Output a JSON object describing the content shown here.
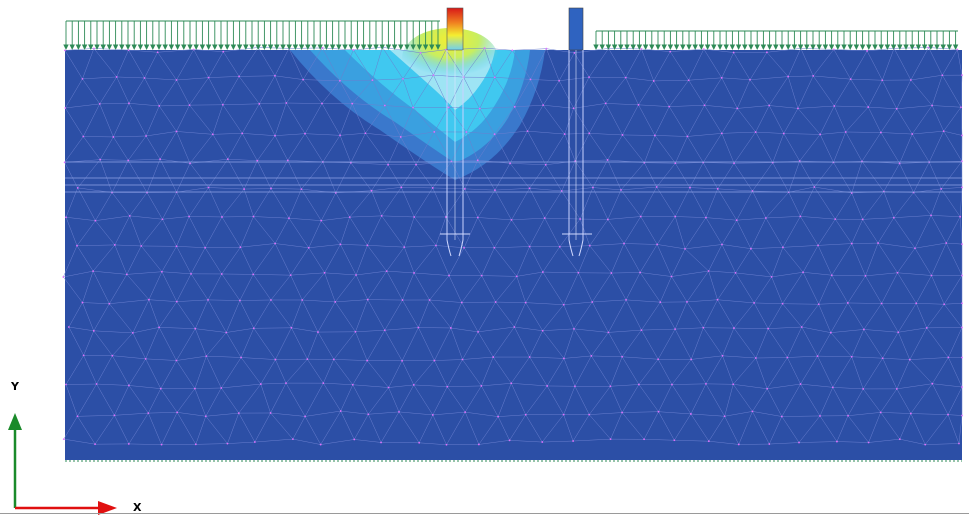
{
  "axes": {
    "y_label": "Y",
    "x_label": "X"
  },
  "colors": {
    "soil": "#2c4fa6",
    "mesh_line": "#6a7fd0",
    "mesh_node": "#e070ff",
    "load_arrow": "#2e8b57",
    "y_axis_arrow": "#1a8a2a",
    "x_axis_arrow": "#e01010",
    "contour_light_blue": "#3aa0e0",
    "contour_cyan": "#40c8f0",
    "contour_green": "#90e060",
    "contour_yellow": "#f4ee30",
    "contour_orange": "#f08020",
    "contour_red": "#d81818"
  },
  "legend": {}
}
